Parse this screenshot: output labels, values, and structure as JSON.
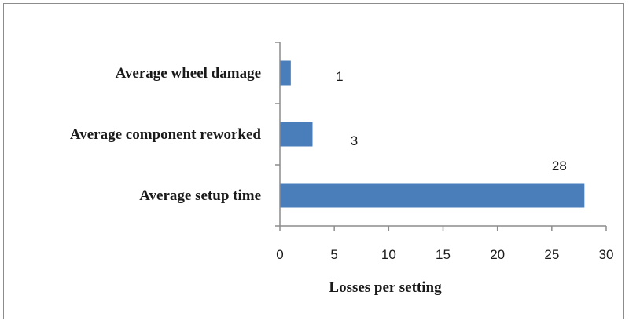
{
  "chart_data": {
    "type": "bar",
    "orientation": "horizontal",
    "categories": [
      "Average wheel damage",
      "Average component reworked",
      "Average setup time"
    ],
    "values": [
      1,
      3,
      28
    ],
    "data_labels": [
      "1",
      "3",
      "28"
    ],
    "title": "",
    "xlabel": "Losses per setting",
    "ylabel": "",
    "xlim": [
      0,
      30
    ],
    "x_ticks": [
      "0",
      "5",
      "10",
      "15",
      "20",
      "25",
      "30"
    ],
    "grid": false,
    "legend": "none",
    "bar_color": "#4a7ebb"
  }
}
